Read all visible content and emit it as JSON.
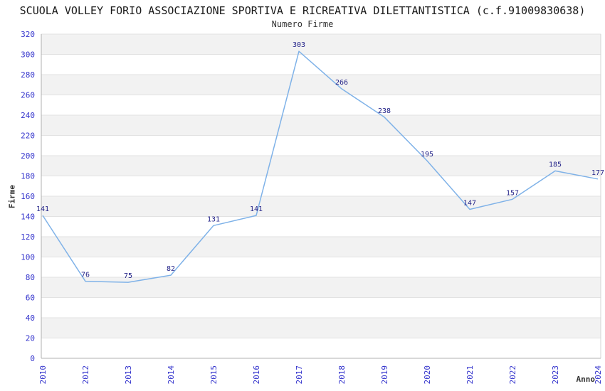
{
  "chart_data": {
    "type": "line",
    "title": "SCUOLA VOLLEY FORIO ASSOCIAZIONE SPORTIVA E RICREATIVA DILETTANTISTICA (c.f.91009830638)",
    "subtitle": "Numero Firme",
    "xlabel": "Anno",
    "ylabel": "Firme",
    "categories": [
      "2010",
      "2012",
      "2013",
      "2014",
      "2015",
      "2016",
      "2017",
      "2018",
      "2019",
      "2020",
      "2021",
      "2022",
      "2023",
      "2024"
    ],
    "values": [
      141,
      76,
      75,
      82,
      131,
      141,
      303,
      266,
      238,
      195,
      147,
      157,
      185,
      177
    ],
    "ylim": [
      0,
      320
    ],
    "ytick_step": 20,
    "grid": "horizontal-bands-alternating",
    "legend": "none",
    "data_labels": "above-points",
    "colors": {
      "line": "#7fb2e8",
      "tick_label": "#3333cc",
      "data_label": "#222288",
      "band": "#f2f2f2",
      "gridline": "#e2e2e2",
      "axis": "#b0b0b0",
      "border": "#d4d4d4",
      "title": "#1a1a1a",
      "subtitle": "#333333",
      "axis_title": "#333333",
      "background": "#ffffff"
    }
  }
}
